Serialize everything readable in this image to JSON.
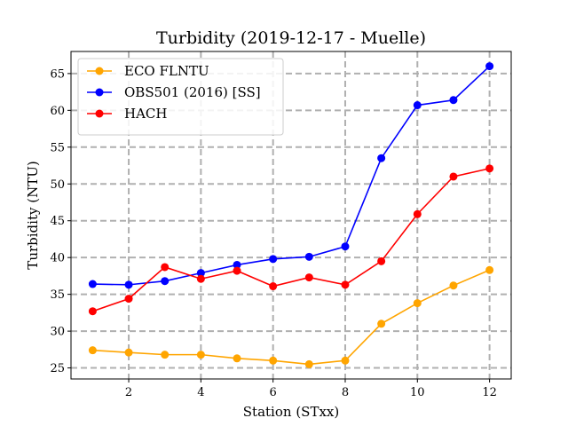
{
  "chart_data": {
    "type": "line",
    "title": "Turbidity (2019-12-17 - Muelle)",
    "xlabel": "Station (STxx)",
    "ylabel": "Turbidity (NTU)",
    "x": [
      1,
      2,
      3,
      4,
      5,
      6,
      7,
      8,
      9,
      10,
      11,
      12
    ],
    "xlim": [
      0.4,
      12.6
    ],
    "ylim": [
      23.5,
      68
    ],
    "xticks": [
      2,
      4,
      6,
      8,
      10,
      12
    ],
    "yticks": [
      25,
      30,
      35,
      40,
      45,
      50,
      55,
      60,
      65
    ],
    "grid": true,
    "legend_position": "top-left",
    "series": [
      {
        "name": "ECO FLNTU",
        "color": "#ffa500",
        "values": [
          27.4,
          27.1,
          26.8,
          26.8,
          26.3,
          26.0,
          25.5,
          26.0,
          31.0,
          33.8,
          36.2,
          38.3
        ]
      },
      {
        "name": "OBS501 (2016) [SS]",
        "color": "#0000ff",
        "values": [
          36.4,
          36.3,
          36.8,
          37.9,
          39.0,
          39.8,
          40.1,
          41.5,
          53.5,
          60.7,
          61.4,
          66.0
        ]
      },
      {
        "name": "HACH",
        "color": "#ff0000",
        "values": [
          32.7,
          34.4,
          38.7,
          37.1,
          38.2,
          36.1,
          37.3,
          36.3,
          39.5,
          45.9,
          51.0,
          52.1
        ]
      }
    ]
  }
}
